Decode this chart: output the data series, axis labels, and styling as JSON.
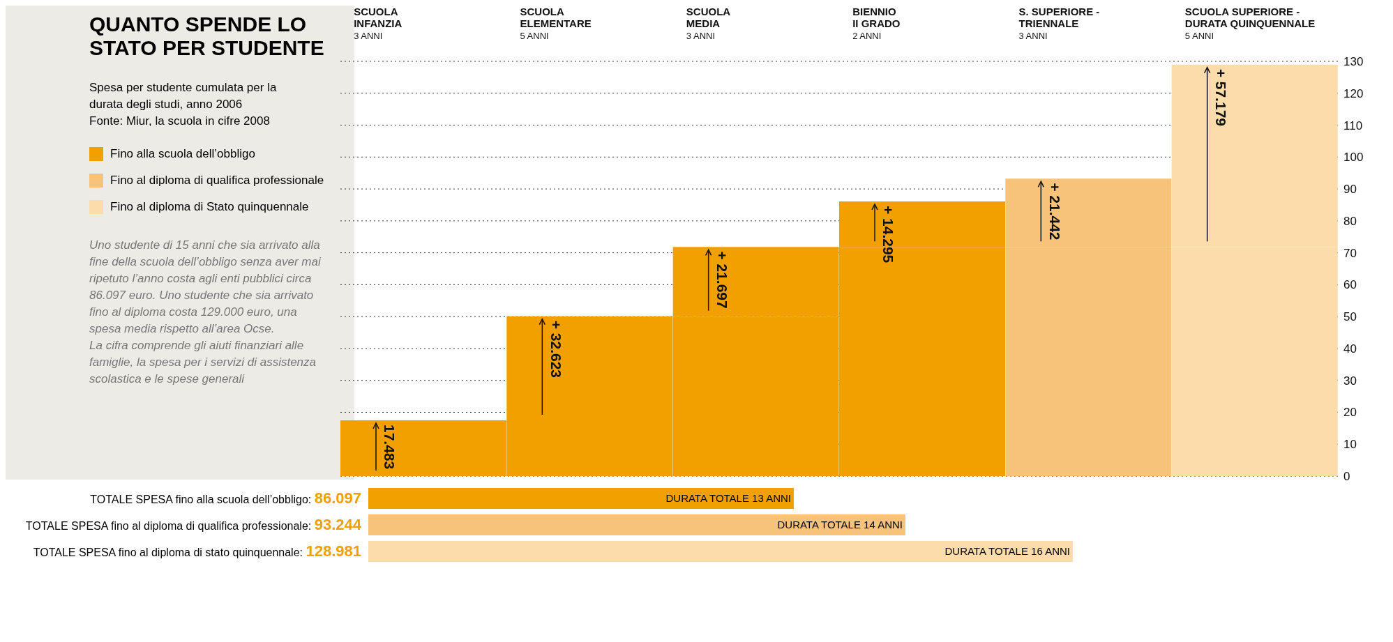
{
  "chart_data": {
    "type": "bar",
    "title": "QUANTO SPENDE LO STATO PER STUDENTE",
    "subtitle": "Spesa per studente cumulata per la durata degli studi, anno 2006\nFonte: Miur, la scuola in cifre 2008",
    "categories": [
      "SCUOLA\nINFANZIA\n3 ANNI",
      "SCUOLA\nELEMENTARE\n5 ANNI",
      "SCUOLA\nMEDIA\n3 ANNI",
      "BIENNIO\nII GRADO\n2 ANNI",
      "S. SUPERIORE -\nTRIENNALE\n3 ANNI",
      "SCUOLA SUPERIORE -\nDURATA QUINQUENNALE\n5 ANNI"
    ],
    "stacked": true,
    "series": [
      {
        "colors": [
          "#f29f00",
          "#f29f00",
          "#f29f00",
          "#f29f00",
          "#f7c27a",
          "#fbdcaa"
        ],
        "values": [
          null,
          17.483,
          50.106,
          71.803,
          71.803,
          71.803
        ]
      },
      {
        "name": "Fino alla scuola dell’obbligo",
        "color": "#f29f00",
        "values": [
          17.483,
          32.623,
          21.697,
          14.295,
          null,
          null
        ],
        "value_labels": [
          "17.483",
          "+ 32.623",
          "+ 21.697",
          "+ 14.295",
          null,
          null
        ]
      },
      {
        "name": "Fino al diploma di qualifica professionale",
        "color": "#f7c27a",
        "values": [
          null,
          null,
          null,
          null,
          21.442,
          null
        ],
        "value_labels": [
          null,
          null,
          null,
          null,
          "+ 21.442",
          null
        ]
      },
      {
        "name": "Fino al diploma di Stato quinquennale",
        "color": "#fbdcaa",
        "values": [
          null,
          null,
          null,
          null,
          null,
          57.179
        ],
        "value_labels": [
          null,
          null,
          null,
          null,
          null,
          "+ 57.179"
        ]
      }
    ],
    "ylim": [
      0,
      130
    ],
    "yticks": [
      0,
      10,
      20,
      30,
      40,
      50,
      60,
      70,
      80,
      90,
      100,
      110,
      120,
      130
    ],
    "grid": "y",
    "legend": "left",
    "annotations": [
      "Uno studente di 15 anni che sia arrivato alla fine della scuola dell’obbligo senza aver mai ripetuto l’anno costa agli enti pubblici circa 86.097 euro. Uno studente che sia arrivato fino al diploma costa 129.000 euro, una spesa media rispetto all’area Ocse.\nLa cifra comprende gli aiuti finanziari alle famiglie, la spesa per i servizi di assistenza scolastica e le spese generali",
      "TOTALE SPESA fino alla scuola dell’obbligo: 86.097",
      "TOTALE SPESA fino al diploma di qualifica professionale: 93.244",
      "TOTALE SPESA fino al diploma di stato quinquennale: 128.981",
      "DURATA TOTALE 13 ANNI",
      "DURATA TOTALE 14 ANNI",
      "DURATA TOTALE 16 ANNI"
    ]
  }
}
